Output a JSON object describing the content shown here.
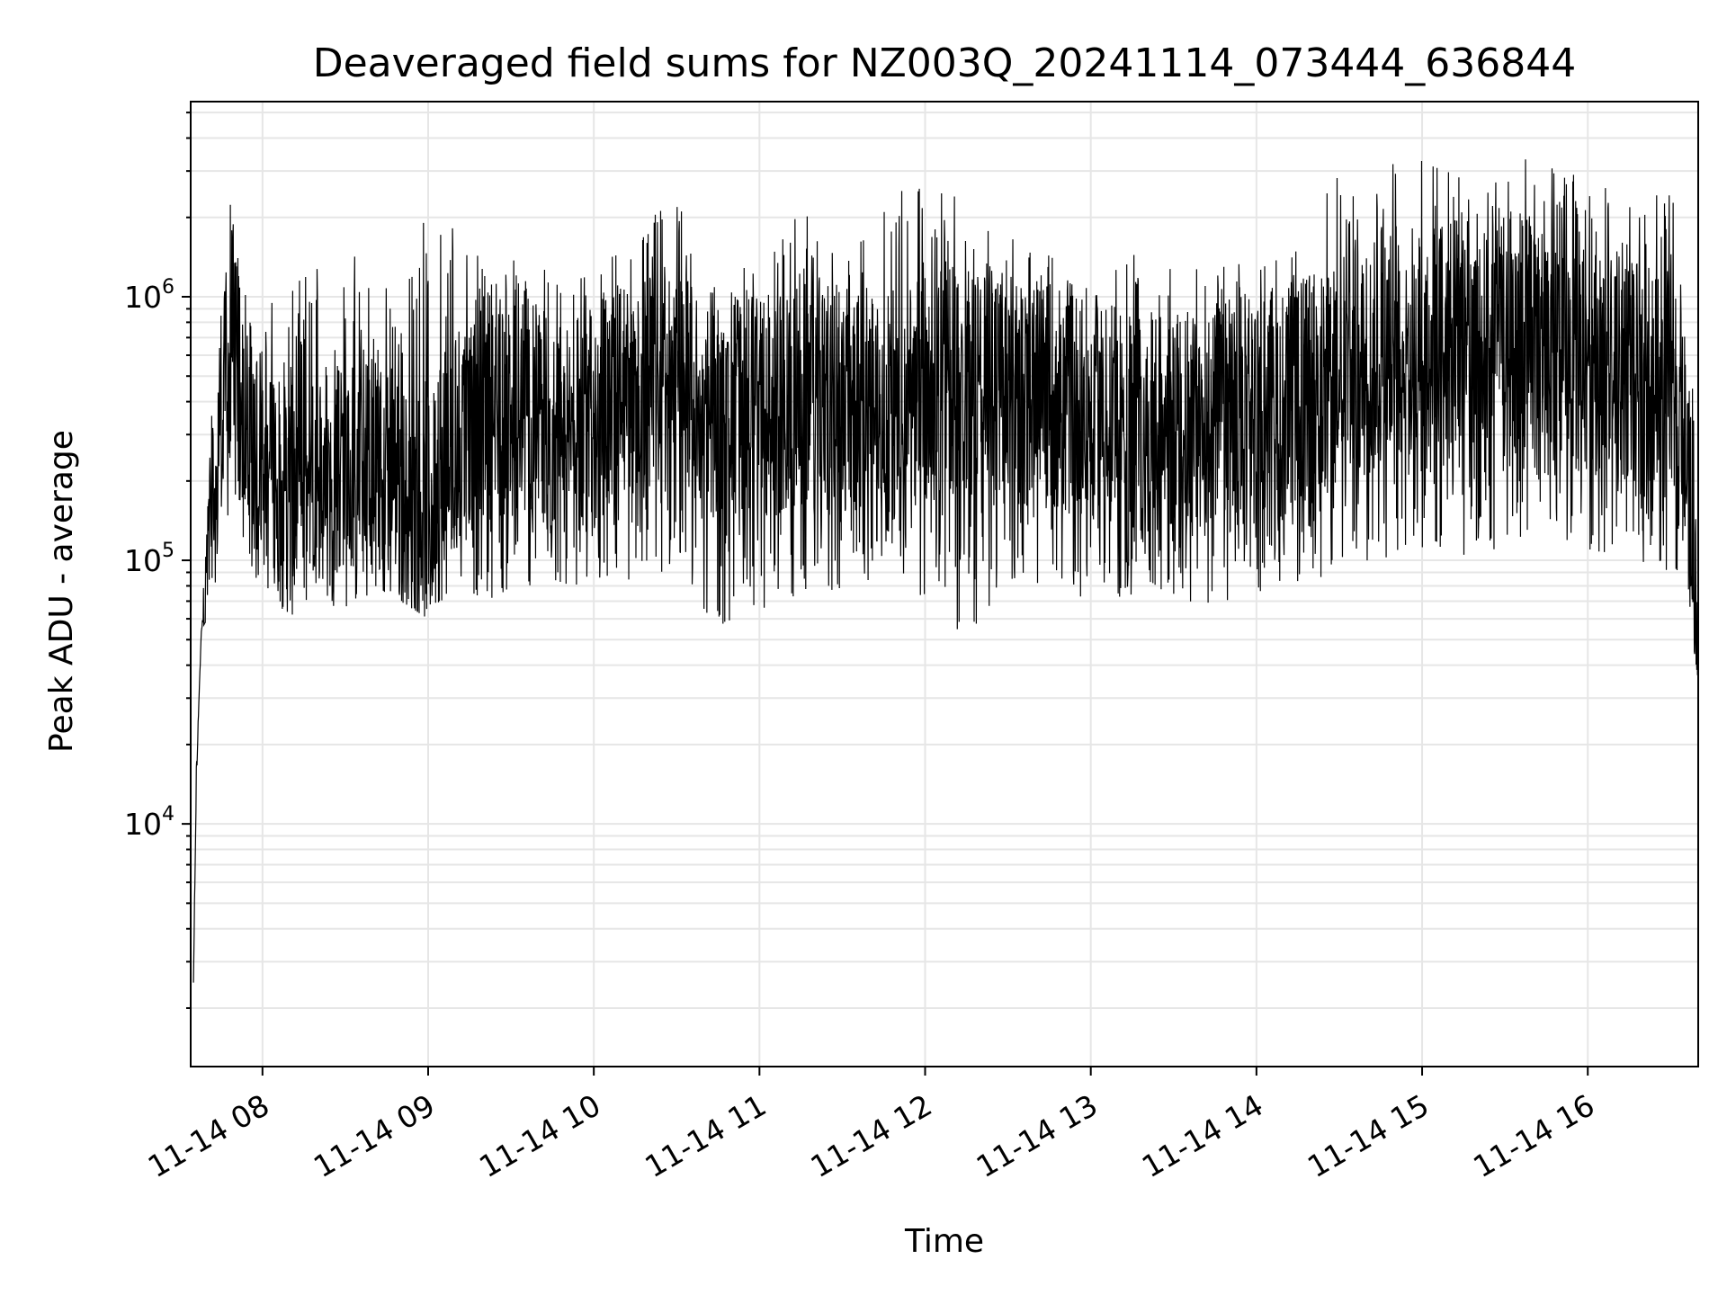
{
  "chart_data": {
    "type": "line",
    "title": "Deaveraged field sums for NZ003Q_20241114_073444_636844",
    "xlabel": "Time",
    "ylabel": "Peak ADU - average",
    "yscale": "log",
    "ylim": [
      1200,
      5500000
    ],
    "xlim": [
      "2024-11-14 07:34",
      "2024-11-14 16:40"
    ],
    "grid": true,
    "line_color": "#000000",
    "grid_color": "#e6e6e6",
    "x_ticks": [
      {
        "value": "2024-11-14 08:00",
        "label": "11-14 08"
      },
      {
        "value": "2024-11-14 09:00",
        "label": "11-14 09"
      },
      {
        "value": "2024-11-14 10:00",
        "label": "11-14 10"
      },
      {
        "value": "2024-11-14 11:00",
        "label": "11-14 11"
      },
      {
        "value": "2024-11-14 12:00",
        "label": "11-14 12"
      },
      {
        "value": "2024-11-14 13:00",
        "label": "11-14 13"
      },
      {
        "value": "2024-11-14 14:00",
        "label": "11-14 14"
      },
      {
        "value": "2024-11-14 15:00",
        "label": "11-14 15"
      },
      {
        "value": "2024-11-14 16:00",
        "label": "11-14 16"
      }
    ],
    "y_ticks": [
      {
        "value": 10000,
        "base": "10",
        "exp": "4"
      },
      {
        "value": 100000,
        "base": "10",
        "exp": "5"
      },
      {
        "value": 1000000,
        "base": "10",
        "exp": "6"
      }
    ],
    "series": [
      {
        "x": [
          "2024-11-14 07:35",
          "2024-11-14 07:36",
          "2024-11-14 07:37",
          "2024-11-14 07:38",
          "2024-11-14 07:40",
          "2024-11-14 07:42",
          "2024-11-14 07:44",
          "2024-11-14 07:46",
          "2024-11-14 07:48",
          "2024-11-14 07:50",
          "2024-11-14 07:52",
          "2024-11-14 07:55",
          "2024-11-14 08:00",
          "2024-11-14 08:10",
          "2024-11-14 08:20",
          "2024-11-14 08:30",
          "2024-11-14 08:40",
          "2024-11-14 08:50",
          "2024-11-14 09:00",
          "2024-11-14 09:10",
          "2024-11-14 09:20",
          "2024-11-14 09:30",
          "2024-11-14 09:40",
          "2024-11-14 09:50",
          "2024-11-14 10:00",
          "2024-11-14 10:15",
          "2024-11-14 10:30",
          "2024-11-14 10:45",
          "2024-11-14 11:00",
          "2024-11-14 11:15",
          "2024-11-14 11:30",
          "2024-11-14 11:45",
          "2024-11-14 12:00",
          "2024-11-14 12:15",
          "2024-11-14 12:30",
          "2024-11-14 12:45",
          "2024-11-14 13:00",
          "2024-11-14 13:15",
          "2024-11-14 13:30",
          "2024-11-14 13:45",
          "2024-11-14 14:00",
          "2024-11-14 14:15",
          "2024-11-14 14:30",
          "2024-11-14 14:45",
          "2024-11-14 15:00",
          "2024-11-14 15:15",
          "2024-11-14 15:30",
          "2024-11-14 15:45",
          "2024-11-14 16:00",
          "2024-11-14 16:15",
          "2024-11-14 16:30",
          "2024-11-14 16:35",
          "2024-11-14 16:38",
          "2024-11-14 16:40"
        ],
        "y": [
          2500,
          13000,
          30000,
          60000,
          120000,
          150000,
          300000,
          600000,
          700000,
          750000,
          500000,
          300000,
          250000,
          200000,
          220000,
          250000,
          230000,
          180000,
          150000,
          300000,
          400000,
          380000,
          330000,
          300000,
          350000,
          420000,
          450000,
          400000,
          380000,
          420000,
          400000,
          350000,
          450000,
          500000,
          480000,
          420000,
          380000,
          320000,
          300000,
          350000,
          380000,
          420000,
          500000,
          600000,
          700000,
          750000,
          800000,
          700000,
          600000,
          500000,
          450000,
          300000,
          100000,
          35000
        ],
        "min": [
          2500,
          13000,
          30000,
          55000,
          60000,
          70000,
          100000,
          120000,
          150000,
          160000,
          120000,
          80000,
          80000,
          60000,
          70000,
          65000,
          70000,
          70000,
          60000,
          80000,
          70000,
          75000,
          80000,
          80000,
          80000,
          85000,
          90000,
          55000,
          65000,
          70000,
          75000,
          90000,
          70000,
          50000,
          75000,
          80000,
          70000,
          70000,
          65000,
          60000,
          75000,
          80000,
          90000,
          100000,
          110000,
          100000,
          110000,
          120000,
          110000,
          100000,
          70000,
          120000,
          50000,
          35000
        ],
        "max": [
          2500,
          16000,
          30000,
          60000,
          140000,
          580000,
          800000,
          900000,
          2600000,
          1800000,
          1200000,
          1000000,
          1000000,
          1000000,
          1800000,
          1600000,
          1400000,
          1000000,
          2300000,
          2200000,
          1300000,
          1500000,
          1300000,
          1500000,
          1200000,
          1800000,
          2600000,
          1000000,
          1500000,
          2200000,
          1300000,
          2500000,
          3200000,
          2200000,
          1700000,
          1500000,
          1300000,
          1600000,
          1300000,
          1300000,
          1400000,
          1500000,
          3100000,
          3300000,
          3500000,
          2800000,
          3600000,
          3200000,
          2800000,
          2600000,
          2500000,
          1500000,
          600000,
          100000
        ]
      }
    ]
  }
}
